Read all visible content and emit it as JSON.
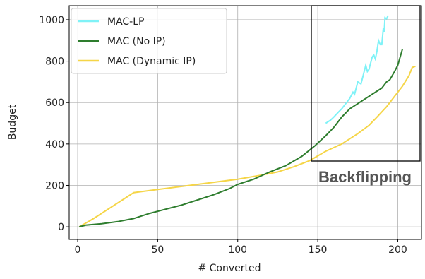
{
  "chart_data": {
    "type": "line",
    "xlabel": "# Converted",
    "ylabel": "Budget",
    "xlim": [
      -5.3,
      214.8
    ],
    "ylim": [
      -61,
      1068
    ],
    "xticks": [
      0,
      50,
      100,
      150,
      200
    ],
    "yticks": [
      0,
      200,
      400,
      600,
      800,
      1000
    ],
    "grid": true,
    "legend": "upper left",
    "annotation": "Backflipping",
    "series": [
      {
        "name": "MAC-LP",
        "color": "#7ff2f7",
        "x": [
          155,
          158,
          160,
          163,
          165,
          168,
          170,
          172,
          173,
          175,
          177,
          178,
          180,
          181,
          182,
          184,
          185,
          186,
          187,
          188,
          189,
          190,
          191,
          191.5,
          192,
          193,
          194
        ],
        "values": [
          500,
          515,
          530,
          555,
          570,
          600,
          620,
          650,
          640,
          700,
          690,
          720,
          780,
          750,
          760,
          820,
          830,
          810,
          850,
          900,
          880,
          880,
          960,
          940,
          1010,
          1005,
          1020
        ]
      },
      {
        "name": "MAC (No IP)",
        "color": "#2e7d2e",
        "x": [
          1,
          5,
          15,
          25,
          35,
          45,
          55,
          65,
          75,
          85,
          95,
          100,
          110,
          120,
          130,
          140,
          148,
          155,
          160,
          165,
          170,
          175,
          180,
          185,
          188,
          190,
          193,
          195,
          198,
          200,
          203
        ],
        "values": [
          0,
          8,
          15,
          25,
          40,
          65,
          85,
          105,
          130,
          155,
          185,
          205,
          230,
          265,
          295,
          340,
          390,
          440,
          480,
          530,
          570,
          595,
          620,
          645,
          660,
          670,
          700,
          710,
          750,
          780,
          860
        ]
      },
      {
        "name": "MAC (Dynamic IP)",
        "color": "#f5d547",
        "x": [
          1,
          10,
          20,
          30,
          35,
          50,
          75,
          100,
          115,
          125,
          135,
          145,
          155,
          165,
          175,
          182,
          187,
          193,
          198,
          203,
          207,
          209,
          211
        ],
        "values": [
          0,
          40,
          90,
          140,
          165,
          180,
          205,
          230,
          250,
          265,
          290,
          320,
          365,
          400,
          450,
          490,
          530,
          580,
          630,
          680,
          730,
          770,
          775
        ]
      }
    ]
  }
}
